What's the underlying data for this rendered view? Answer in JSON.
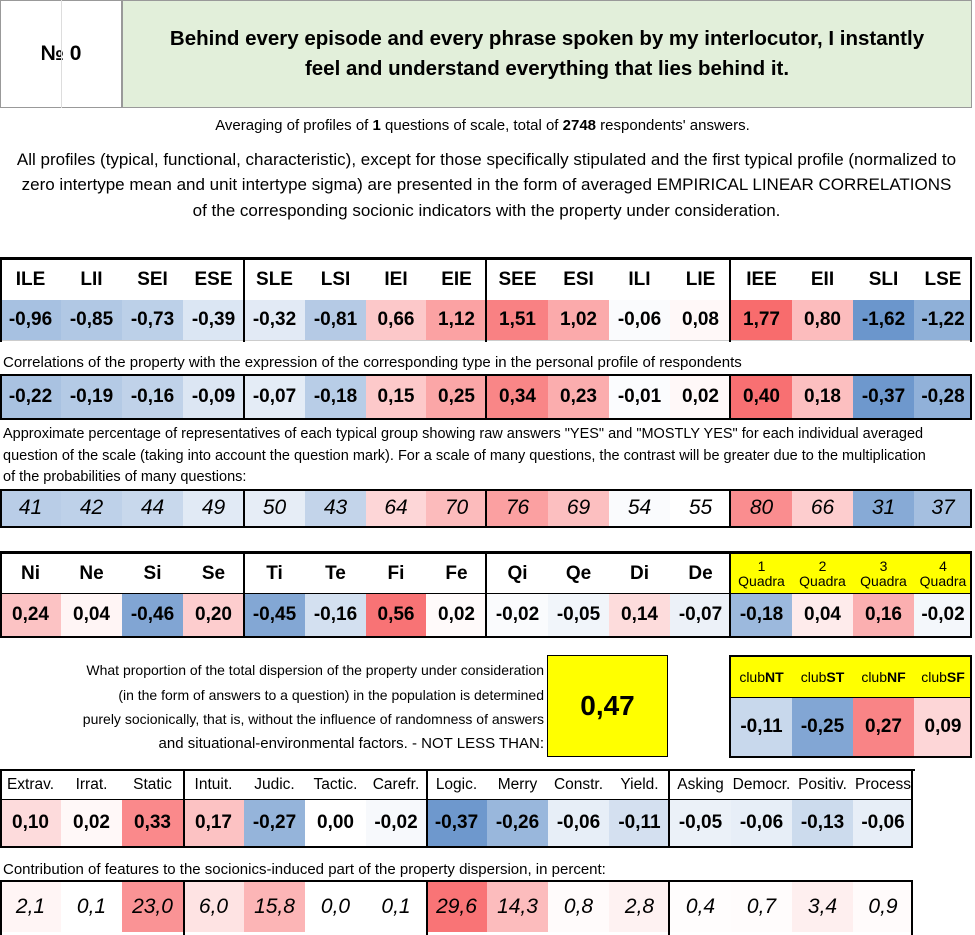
{
  "header": {
    "number_label": "№ 0",
    "question": "Behind every episode and every phrase spoken by my interlocutor, I instantly feel and understand everything that lies behind it."
  },
  "averaging": {
    "prefix": "Averaging of profiles of ",
    "questions": "1",
    "middle": " questions of scale, total of ",
    "answers": "2748",
    "suffix": " respondents' answers."
  },
  "description": "All profiles (typical, functional, characteristic), except for those specifically stipulated and the first typical profile (normalized to zero intertype mean and unit intertype sigma) are presented in the form of averaged EMPIRICAL LINEAR CORRELATIONS of the corresponding socionic indicators with the property under consideration.",
  "types": {
    "headers": [
      "ILE",
      "LII",
      "SEI",
      "ESE",
      "SLE",
      "LSI",
      "IEI",
      "EIE",
      "SEE",
      "ESI",
      "ILI",
      "LIE",
      "IEE",
      "EII",
      "SLI",
      "LSE"
    ],
    "profile": [
      "-0,96",
      "-0,85",
      "-0,73",
      "-0,39",
      "-0,32",
      "-0,81",
      "0,66",
      "1,12",
      "1,51",
      "1,02",
      "-0,06",
      "0,08",
      "1,77",
      "0,80",
      "-1,62",
      "-1,22"
    ],
    "correlations_note": "Correlations of the property with the expression of the corresponding type in the personal profile of respondents",
    "correlations": [
      "-0,22",
      "-0,19",
      "-0,16",
      "-0,09",
      "-0,07",
      "-0,18",
      "0,15",
      "0,25",
      "0,34",
      "0,23",
      "-0,01",
      "0,02",
      "0,40",
      "0,18",
      "-0,37",
      "-0,28"
    ],
    "percent_note": "Approximate percentage of representatives of each typical group showing raw answers \"YES\" and \"MOSTLY YES\" for each individual averaged question of the scale (taking into account the question mark). For a scale of many questions, the contrast will be greater due to the multiplication of the probabilities of many questions:",
    "percentages": [
      "41",
      "42",
      "44",
      "49",
      "50",
      "43",
      "64",
      "70",
      "76",
      "69",
      "54",
      "55",
      "80",
      "66",
      "31",
      "37"
    ]
  },
  "functions": {
    "headers": [
      "Ni",
      "Ne",
      "Si",
      "Se",
      "Ti",
      "Te",
      "Fi",
      "Fe",
      "Qi",
      "Qe",
      "Di",
      "De"
    ],
    "values": [
      "0,24",
      "0,04",
      "-0,46",
      "0,20",
      "-0,45",
      "-0,16",
      "0,56",
      "0,02",
      "-0,02",
      "-0,05",
      "0,14",
      "-0,07"
    ]
  },
  "quadras": {
    "numbers": [
      "1",
      "2",
      "3",
      "4"
    ],
    "label": "Quadra",
    "values": [
      "-0,18",
      "0,04",
      "0,16",
      "-0,02"
    ]
  },
  "dispersion": {
    "text": [
      "What proportion of the total dispersion of the property under consideration",
      "(in the form of answers to a question) in the population is determined",
      "purely socionically, that is, without the influence of randomness of answers",
      "and situational-environmental factors. - NOT LESS THAN:"
    ],
    "value": "0,47"
  },
  "clubs": {
    "prefix": "club",
    "names": [
      "NT",
      "ST",
      "NF",
      "SF"
    ],
    "values": [
      "-0,11",
      "-0,25",
      "0,27",
      "0,09"
    ]
  },
  "traits": {
    "headers": [
      "Extrav.",
      "Irrat.",
      "Static",
      "Intuit.",
      "Judic.",
      "Tactic.",
      "Carefr.",
      "Logic.",
      "Merry",
      "Constr.",
      "Yield.",
      "Asking",
      "Democr.",
      "Positiv.",
      "Process"
    ],
    "values": [
      "0,10",
      "0,02",
      "0,33",
      "0,17",
      "-0,27",
      "0,00",
      "-0,02",
      "-0,37",
      "-0,26",
      "-0,06",
      "-0,11",
      "-0,05",
      "-0,06",
      "-0,13",
      "-0,06"
    ],
    "contribution_note": "Contribution of features to the sociоnics-induced part of the property dispersion, in percent:",
    "contributions": [
      "2,1",
      "0,1",
      "23,0",
      "6,0",
      "15,8",
      "0,0",
      "0,1",
      "29,6",
      "14,3",
      "0,8",
      "2,8",
      "0,4",
      "0,7",
      "3,4",
      "0,9"
    ]
  },
  "colors": {
    "title_bg": "#e2efda",
    "highlight": "#ffff00",
    "positive": "#f8696b",
    "negative": "#5a8ac6"
  }
}
